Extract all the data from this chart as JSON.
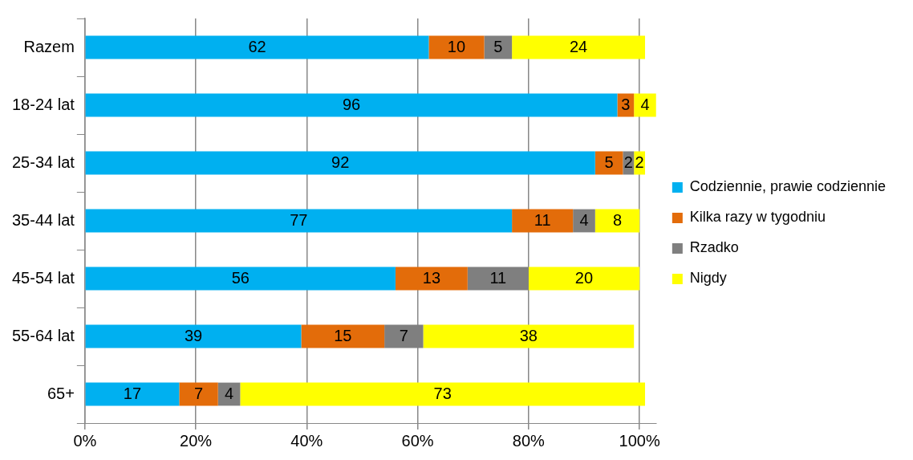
{
  "chart_data": {
    "type": "bar",
    "orientation": "horizontal",
    "stacked": true,
    "categories": [
      "Razem",
      "18-24 lat",
      "25-34 lat",
      "35-44 lat",
      "45-54 lat",
      "55-64 lat",
      "65+"
    ],
    "series": [
      {
        "name": "Codziennie, prawie codziennie",
        "color": "#00b0f0",
        "values": [
          62,
          96,
          92,
          77,
          56,
          39,
          17
        ]
      },
      {
        "name": "Kilka razy w tygodniu",
        "color": "#e36c0a",
        "values": [
          10,
          3,
          5,
          11,
          13,
          15,
          7
        ]
      },
      {
        "name": "Rzadko",
        "color": "#7f7f7f",
        "values": [
          5,
          null,
          2,
          4,
          11,
          7,
          4
        ]
      },
      {
        "name": "Nigdy",
        "color": "#ffff00",
        "values": [
          24,
          4,
          2,
          8,
          20,
          38,
          73
        ]
      }
    ],
    "xlim": [
      0,
      103
    ],
    "xticks": [
      {
        "value": 0,
        "label": "0%"
      },
      {
        "value": 20,
        "label": "20%"
      },
      {
        "value": 40,
        "label": "40%"
      },
      {
        "value": 60,
        "label": "60%"
      },
      {
        "value": 80,
        "label": "80%"
      },
      {
        "value": 100,
        "label": "100%"
      }
    ],
    "grid": "x",
    "legend": "right",
    "data_labels": true
  }
}
